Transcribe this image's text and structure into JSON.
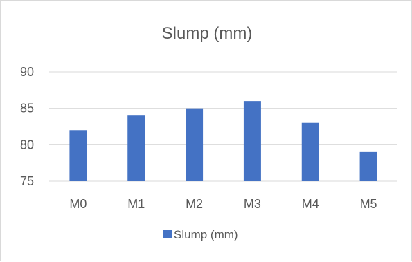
{
  "chart_data": {
    "type": "bar",
    "title": "Slump (mm)",
    "categories": [
      "M0",
      "M1",
      "M2",
      "M3",
      "M4",
      "M5"
    ],
    "series": [
      {
        "name": "Slump (mm)",
        "values": [
          82,
          84,
          85,
          86,
          83,
          79
        ],
        "color": "#4472c4"
      }
    ],
    "ylim": [
      75,
      90
    ],
    "yticks": [
      75,
      80,
      85,
      90
    ],
    "grid": true,
    "legend": "bottom"
  }
}
